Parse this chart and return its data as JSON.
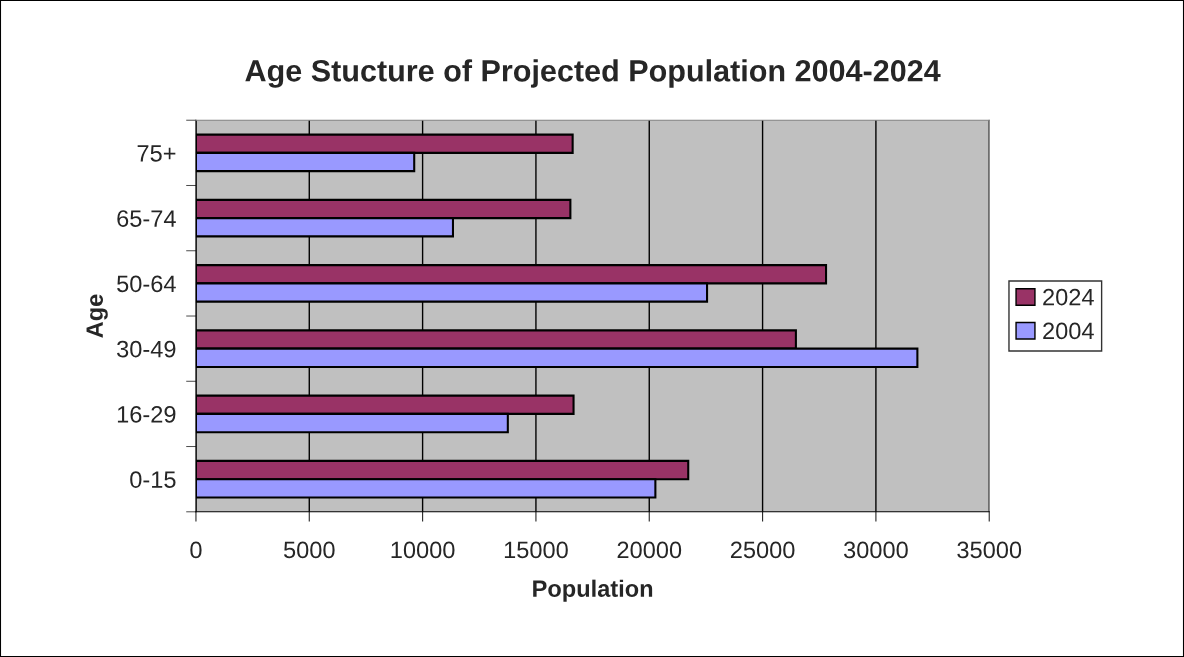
{
  "chart_data": {
    "type": "bar",
    "orientation": "horizontal",
    "title": "Age Stucture of Projected Population 2004-2024",
    "xlabel": "Population",
    "ylabel": "Age",
    "categories": [
      "75+",
      "65-74",
      "50-64",
      "30-49",
      "16-29",
      "0-15"
    ],
    "series": [
      {
        "name": "2024",
        "color": "#993366",
        "values": [
          16620,
          16520,
          27800,
          26470,
          16660,
          21720
        ]
      },
      {
        "name": "2004",
        "color": "#9999ff",
        "values": [
          9630,
          11340,
          22550,
          31830,
          13760,
          20270
        ]
      }
    ],
    "xlim": [
      0,
      35000
    ],
    "xticks": [
      0,
      5000,
      10000,
      15000,
      20000,
      25000,
      30000,
      35000
    ],
    "grid": "x",
    "legend": "right"
  }
}
